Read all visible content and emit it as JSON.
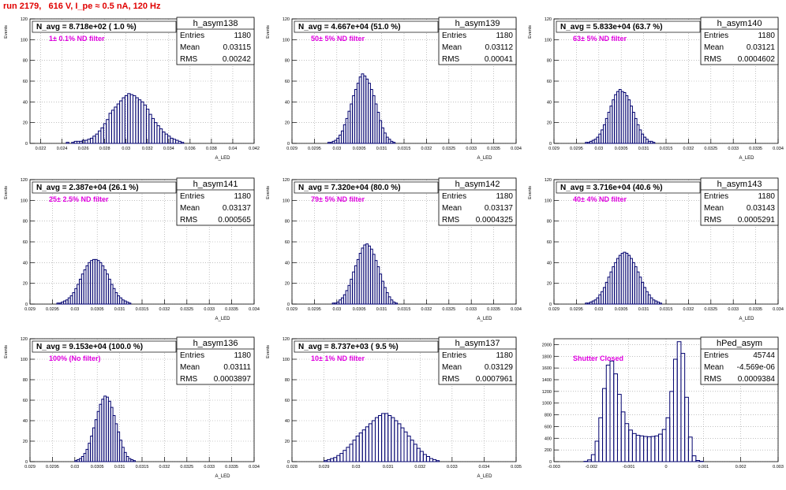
{
  "title": "run 2179,   616 V, I_pe ≈ 0.5 nA, 120 Hz",
  "colors": {
    "hist": "#00006e",
    "title": "#e00000",
    "filter": "#e000e0",
    "grid": "#9a9a9a"
  },
  "chart_data": [
    {
      "type": "histogram",
      "name": "h_asym138",
      "navg": "N_avg = 8.718e+02 ( 1.0 %)",
      "filter": "1± 0.1% ND filter",
      "stats": [
        [
          "Entries",
          "1180"
        ],
        [
          "Mean",
          "0.03115"
        ],
        [
          "RMS",
          "0.00242"
        ]
      ],
      "xlabel": "A_LED",
      "ylabel": "Events",
      "xlim": [
        0.021,
        0.042
      ],
      "ylim": [
        0,
        120
      ],
      "xticks": [
        0.022,
        0.024,
        0.026,
        0.028,
        0.03,
        0.032,
        0.034,
        0.036,
        0.038,
        0.04,
        0.042
      ],
      "xtick_labels": [
        "0.022",
        "0.024",
        "0.026",
        "0.028",
        "0.03",
        "0.032",
        "0.034",
        "0.036",
        "0.038",
        "0.04",
        "0.042"
      ],
      "yticks": [
        0,
        20,
        40,
        60,
        80,
        100,
        120
      ],
      "bins": {
        "start": 0.0244,
        "width": 0.00025,
        "counts": [
          1,
          0,
          1,
          2,
          2,
          2,
          3,
          3,
          4,
          5,
          7,
          9,
          12,
          15,
          19,
          23,
          29,
          32,
          35,
          38,
          41,
          44,
          46,
          48,
          47,
          46,
          44,
          42,
          40,
          37,
          33,
          28,
          24,
          20,
          17,
          14,
          11,
          9,
          7,
          5,
          4,
          3,
          2,
          1
        ]
      }
    },
    {
      "type": "histogram",
      "name": "h_asym139",
      "navg": "N_avg = 4.667e+04 (51.0 %)",
      "filter": "50± 5% ND filter",
      "stats": [
        [
          "Entries",
          "1180"
        ],
        [
          "Mean",
          "0.03112"
        ],
        [
          "RMS",
          "0.00041"
        ]
      ],
      "xlabel": "A_LED",
      "ylabel": "Events",
      "xlim": [
        0.029,
        0.034
      ],
      "ylim": [
        0,
        120
      ],
      "xticks": [
        0.029,
        0.0295,
        0.03,
        0.0305,
        0.031,
        0.0315,
        0.032,
        0.0325,
        0.033,
        0.0335,
        0.034
      ],
      "xtick_labels": [
        "0.029",
        "0.0295",
        "0.03",
        "0.0305",
        "0.031",
        "0.0315",
        "0.032",
        "0.0325",
        "0.033",
        "0.0335",
        "0.034"
      ],
      "yticks": [
        0,
        20,
        40,
        60,
        80,
        100,
        120
      ],
      "bins": {
        "start": 0.0298,
        "width": 5e-05,
        "counts": [
          1,
          1,
          2,
          3,
          5,
          8,
          12,
          18,
          24,
          31,
          38,
          46,
          52,
          58,
          64,
          67,
          65,
          62,
          58,
          52,
          46,
          38,
          30,
          22,
          15,
          10,
          6,
          4,
          2,
          1
        ]
      }
    },
    {
      "type": "histogram",
      "name": "h_asym140",
      "navg": "N_avg = 5.833e+04 (63.7 %)",
      "filter": "63± 5% ND filter",
      "stats": [
        [
          "Entries",
          "1180"
        ],
        [
          "Mean",
          "0.03121"
        ],
        [
          "RMS",
          "0.0004602"
        ]
      ],
      "xlabel": "A_LED",
      "ylabel": "Events",
      "xlim": [
        0.029,
        0.034
      ],
      "ylim": [
        0,
        120
      ],
      "xticks": [
        0.029,
        0.0295,
        0.03,
        0.0305,
        0.031,
        0.0315,
        0.032,
        0.0325,
        0.033,
        0.0335,
        0.034
      ],
      "xtick_labels": [
        "0.029",
        "0.0295",
        "0.03",
        "0.0305",
        "0.031",
        "0.0315",
        "0.032",
        "0.0325",
        "0.033",
        "0.0335",
        "0.034"
      ],
      "yticks": [
        0,
        20,
        40,
        60,
        80,
        100,
        120
      ],
      "bins": {
        "start": 0.0297,
        "width": 5e-05,
        "counts": [
          1,
          1,
          2,
          3,
          4,
          6,
          9,
          13,
          18,
          24,
          30,
          36,
          42,
          47,
          50,
          52,
          50,
          49,
          46,
          42,
          36,
          30,
          24,
          18,
          13,
          9,
          6,
          4,
          2,
          2,
          1
        ]
      }
    },
    {
      "type": "histogram",
      "name": "h_asym141",
      "navg": "N_avg = 2.387e+04 (26.1 %)",
      "filter": "25± 2.5% ND filter",
      "stats": [
        [
          "Entries",
          "1180"
        ],
        [
          "Mean",
          "0.03137"
        ],
        [
          "RMS",
          "0.000565"
        ]
      ],
      "xlabel": "A_LED",
      "ylabel": "Events",
      "xlim": [
        0.029,
        0.034
      ],
      "ylim": [
        0,
        120
      ],
      "xticks": [
        0.029,
        0.0295,
        0.03,
        0.0305,
        0.031,
        0.0315,
        0.032,
        0.0325,
        0.033,
        0.0335,
        0.034
      ],
      "xtick_labels": [
        "0.029",
        "0.0295",
        "0.03",
        "0.0305",
        "0.031",
        "0.0315",
        "0.032",
        "0.0325",
        "0.033",
        "0.0335",
        "0.034"
      ],
      "yticks": [
        0,
        20,
        40,
        60,
        80,
        100,
        120
      ],
      "bins": {
        "start": 0.0296,
        "width": 5e-05,
        "counts": [
          1,
          1,
          2,
          3,
          4,
          6,
          8,
          11,
          15,
          19,
          24,
          29,
          33,
          37,
          40,
          42,
          43,
          43,
          42,
          40,
          37,
          33,
          29,
          24,
          19,
          15,
          11,
          8,
          6,
          4,
          3,
          2,
          1
        ]
      }
    },
    {
      "type": "histogram",
      "name": "h_asym142",
      "navg": "N_avg = 7.320e+04 (80.0 %)",
      "filter": "79± 5% ND filter",
      "stats": [
        [
          "Entries",
          "1180"
        ],
        [
          "Mean",
          "0.03137"
        ],
        [
          "RMS",
          "0.0004325"
        ]
      ],
      "xlabel": "A_LED",
      "ylabel": "Events",
      "xlim": [
        0.029,
        0.034
      ],
      "ylim": [
        0,
        120
      ],
      "xticks": [
        0.029,
        0.0295,
        0.03,
        0.0305,
        0.031,
        0.0315,
        0.032,
        0.0325,
        0.033,
        0.0335,
        0.034
      ],
      "xtick_labels": [
        "0.029",
        "0.0295",
        "0.03",
        "0.0305",
        "0.031",
        "0.0315",
        "0.032",
        "0.0325",
        "0.033",
        "0.0335",
        "0.034"
      ],
      "yticks": [
        0,
        20,
        40,
        60,
        80,
        100,
        120
      ],
      "bins": {
        "start": 0.0299,
        "width": 5e-05,
        "counts": [
          1,
          1,
          2,
          4,
          6,
          9,
          13,
          18,
          24,
          31,
          37,
          43,
          49,
          54,
          57,
          58,
          56,
          53,
          48,
          42,
          36,
          29,
          22,
          16,
          11,
          7,
          4,
          2,
          1
        ]
      }
    },
    {
      "type": "histogram",
      "name": "h_asym143",
      "navg": "N_avg = 3.716e+04 (40.6 %)",
      "filter": "40± 4% ND filter",
      "stats": [
        [
          "Entries",
          "1180"
        ],
        [
          "Mean",
          "0.03143"
        ],
        [
          "RMS",
          "0.0005291"
        ]
      ],
      "xlabel": "A_LED",
      "ylabel": "Events",
      "xlim": [
        0.029,
        0.034
      ],
      "ylim": [
        0,
        120
      ],
      "xticks": [
        0.029,
        0.0295,
        0.03,
        0.0305,
        0.031,
        0.0315,
        0.032,
        0.0325,
        0.033,
        0.0335,
        0.034
      ],
      "xtick_labels": [
        "0.029",
        "0.0295",
        "0.03",
        "0.0305",
        "0.031",
        "0.0315",
        "0.032",
        "0.0325",
        "0.033",
        "0.0335",
        "0.034"
      ],
      "yticks": [
        0,
        20,
        40,
        60,
        80,
        100,
        120
      ],
      "bins": {
        "start": 0.0297,
        "width": 5e-05,
        "counts": [
          1,
          1,
          2,
          3,
          4,
          6,
          9,
          12,
          16,
          21,
          26,
          31,
          36,
          40,
          44,
          47,
          49,
          50,
          49,
          47,
          44,
          40,
          36,
          31,
          26,
          21,
          16,
          12,
          9,
          6,
          4,
          3,
          2,
          1
        ]
      }
    },
    {
      "type": "histogram",
      "name": "h_asym136",
      "navg": "N_avg = 9.153e+04 (100.0 %)",
      "filter": "100% (No filter)",
      "stats": [
        [
          "Entries",
          "1180"
        ],
        [
          "Mean",
          "0.03111"
        ],
        [
          "RMS",
          "0.0003897"
        ]
      ],
      "xlabel": "A_LED",
      "ylabel": "Events",
      "xlim": [
        0.029,
        0.034
      ],
      "ylim": [
        0,
        120
      ],
      "xticks": [
        0.029,
        0.0295,
        0.03,
        0.0305,
        0.031,
        0.0315,
        0.032,
        0.0325,
        0.033,
        0.0335,
        0.034
      ],
      "xtick_labels": [
        "0.029",
        "0.0295",
        "0.03",
        "0.0305",
        "0.031",
        "0.0315",
        "0.032",
        "0.0325",
        "0.033",
        "0.0335",
        "0.034"
      ],
      "yticks": [
        0,
        20,
        40,
        60,
        80,
        100,
        120
      ],
      "bins": {
        "start": 0.03,
        "width": 5e-05,
        "counts": [
          1,
          2,
          3,
          5,
          8,
          12,
          18,
          25,
          33,
          41,
          49,
          56,
          61,
          64,
          63,
          59,
          53,
          45,
          37,
          29,
          21,
          14,
          9,
          5,
          3,
          2,
          1
        ]
      }
    },
    {
      "type": "histogram",
      "name": "h_asym137",
      "navg": "N_avg = 8.737e+03 ( 9.5 %)",
      "filter": "10± 1% ND filter",
      "stats": [
        [
          "Entries",
          "1180"
        ],
        [
          "Mean",
          "0.03129"
        ],
        [
          "RMS",
          "0.0007961"
        ]
      ],
      "xlabel": "A_LED",
      "ylabel": "Events",
      "xlim": [
        0.028,
        0.035
      ],
      "ylim": [
        0,
        120
      ],
      "xticks": [
        0.028,
        0.029,
        0.03,
        0.031,
        0.032,
        0.033,
        0.034,
        0.035
      ],
      "xtick_labels": [
        "0.028",
        "0.029",
        "0.03",
        "0.031",
        "0.032",
        "0.033",
        "0.034",
        "0.035"
      ],
      "yticks": [
        0,
        20,
        40,
        60,
        80,
        100,
        120
      ],
      "bins": {
        "start": 0.029,
        "width": 0.0001,
        "counts": [
          1,
          2,
          3,
          4,
          6,
          8,
          11,
          14,
          17,
          21,
          25,
          28,
          31,
          34,
          37,
          40,
          43,
          45,
          47,
          47,
          45,
          43,
          40,
          37,
          33,
          29,
          25,
          21,
          17,
          13,
          10,
          7,
          5,
          3,
          2,
          1
        ]
      }
    },
    {
      "type": "histogram",
      "name": "hPed_asym",
      "navg": "",
      "filter": "Shutter Closed",
      "stats": [
        [
          "Entries",
          "45744"
        ],
        [
          "Mean",
          "-4.569e-06"
        ],
        [
          "RMS",
          "0.0009384"
        ]
      ],
      "xlabel": "",
      "ylabel": "",
      "xlim": [
        -0.003,
        0.003
      ],
      "ylim": [
        0,
        2100
      ],
      "xticks": [
        -0.003,
        -0.002,
        -0.001,
        0,
        0.001,
        0.002,
        0.003
      ],
      "xtick_labels": [
        "-0.003",
        "-0.002",
        "-0.001",
        "0",
        "0.001",
        "0.002",
        "0.003"
      ],
      "yticks": [
        0,
        200,
        400,
        600,
        800,
        1000,
        1200,
        1400,
        1600,
        1800,
        2000
      ],
      "bins": {
        "start": -0.0022,
        "width": 0.0001,
        "counts": [
          5,
          30,
          120,
          350,
          750,
          1250,
          1650,
          1720,
          1500,
          1150,
          850,
          650,
          540,
          480,
          450,
          440,
          430,
          425,
          430,
          440,
          470,
          550,
          750,
          1200,
          1750,
          2050,
          1850,
          1100,
          420,
          100,
          20,
          5
        ]
      }
    }
  ]
}
